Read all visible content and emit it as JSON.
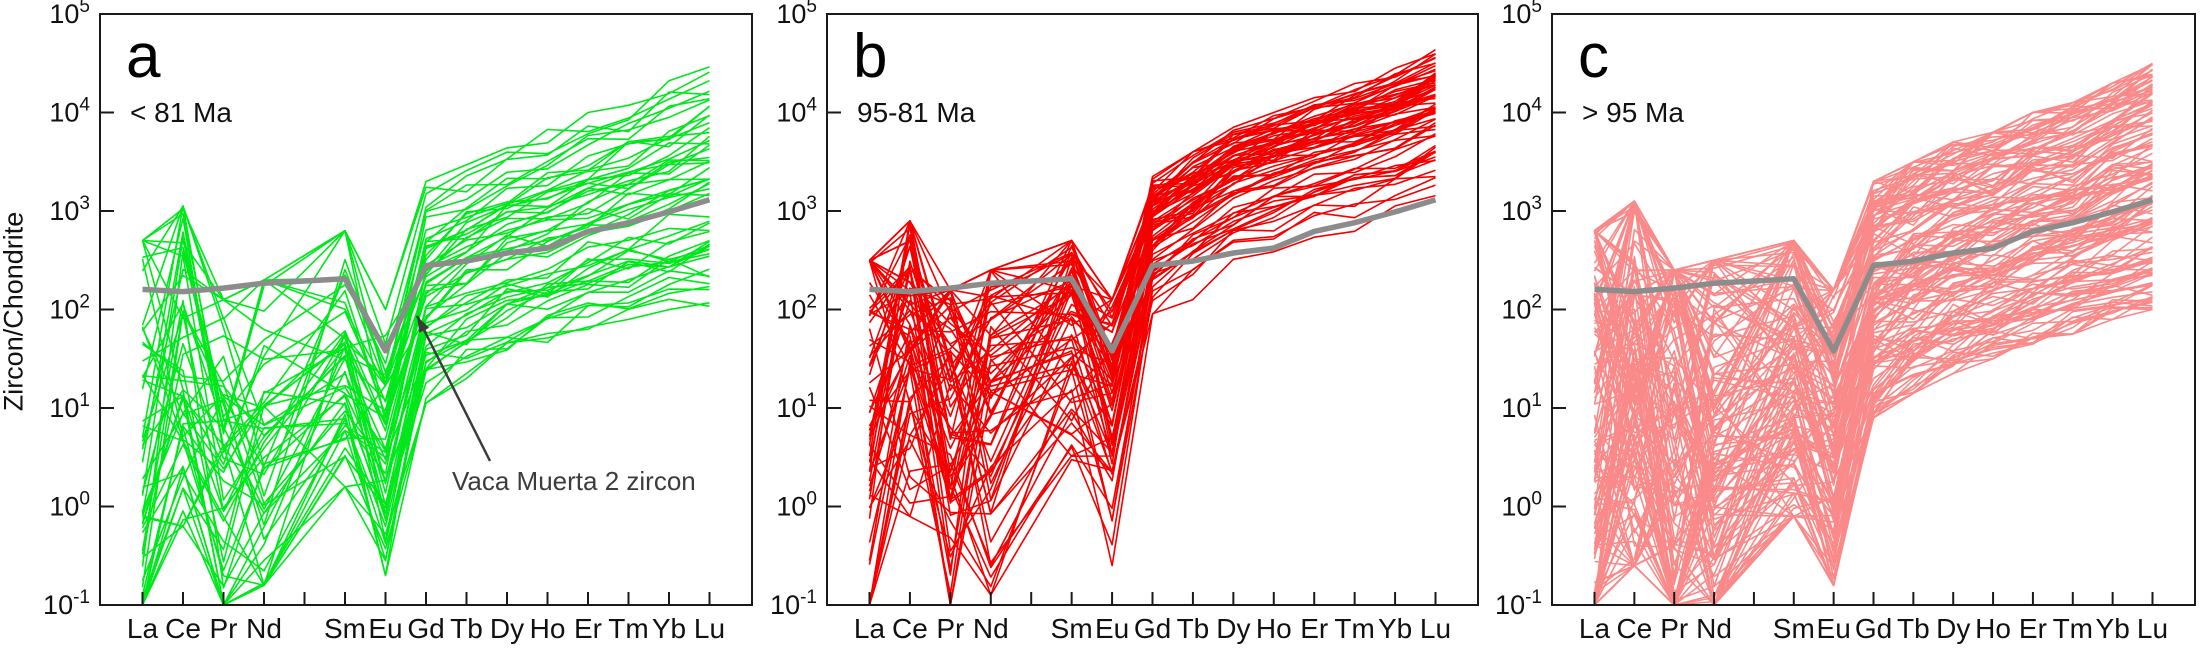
{
  "axis": {
    "ylabel": "Zircon/Chondrite",
    "y_tick_base": "10",
    "y_tick_exponents": [
      "5",
      "4",
      "3",
      "2",
      "1",
      "0",
      "-1"
    ],
    "yscale": "log",
    "ylim": [
      0.1,
      100000
    ],
    "grid": false
  },
  "categories": [
    "La",
    "Ce",
    "Pr",
    "Nd",
    "Sm",
    "Eu",
    "Gd",
    "Tb",
    "Dy",
    "Ho",
    "Er",
    "Tm",
    "Yb",
    "Lu"
  ],
  "colors": {
    "axis": "#1a1a1a",
    "reference_gray": "#8c8c8c",
    "annotation": "#3c3c3c",
    "panel_a_green": "#00e81c",
    "panel_b_red": "#f50000",
    "panel_c_salmon": "#fa8a8a"
  },
  "chart_data": [
    {
      "type": "line",
      "panel_label": "a",
      "age_label": "< 81 Ma",
      "line_color": "#00e81c",
      "n_lines": 55,
      "t_skew": 1.0,
      "yscale": "log",
      "ylim": [
        0.1,
        100000
      ],
      "log_band_min": [
        -1.3,
        -0.2,
        -1.2,
        -0.8,
        0.2,
        -0.7,
        1.05,
        1.3,
        1.5,
        1.65,
        1.8,
        1.9,
        1.95,
        2.0
      ],
      "log_band_max": [
        2.7,
        3.05,
        2.1,
        2.3,
        2.8,
        2.0,
        3.3,
        3.5,
        3.7,
        3.85,
        4.0,
        4.15,
        4.4,
        4.55
      ],
      "noise_amp": [
        0.45,
        0.38,
        0.42,
        0.38,
        0.33,
        0.28,
        0.1,
        0.08,
        0.07,
        0.06,
        0.06,
        0.06,
        0.06,
        0.06
      ],
      "reference": {
        "name": "Vaca Muerta 2 zircon",
        "values": [
          160,
          152,
          165,
          185,
          205,
          38,
          280,
          310,
          375,
          420,
          620,
          760,
          980,
          1300
        ]
      },
      "annotation": {
        "text": "Vaca Muerta 2 zircon"
      }
    },
    {
      "type": "line",
      "panel_label": "b",
      "age_label": "95-81 Ma",
      "line_color": "#f50000",
      "n_lines": 72,
      "t_skew": 0.5,
      "yscale": "log",
      "ylim": [
        0.1,
        100000
      ],
      "log_band_min": [
        -1.4,
        -0.1,
        -1.3,
        -0.9,
        0.3,
        -0.6,
        1.8,
        2.1,
        2.35,
        2.5,
        2.65,
        2.75,
        2.85,
        2.95
      ],
      "log_band_max": [
        2.5,
        2.9,
        2.2,
        2.4,
        2.7,
        2.1,
        3.35,
        3.6,
        3.85,
        4.0,
        4.15,
        4.3,
        4.45,
        4.65
      ],
      "noise_amp": [
        0.5,
        0.4,
        0.45,
        0.4,
        0.32,
        0.3,
        0.1,
        0.08,
        0.07,
        0.06,
        0.06,
        0.06,
        0.06,
        0.06
      ],
      "reference": {
        "name": "Vaca Muerta 2 zircon",
        "values": [
          160,
          152,
          165,
          185,
          205,
          38,
          280,
          310,
          375,
          420,
          620,
          760,
          980,
          1300
        ]
      }
    },
    {
      "type": "line",
      "panel_label": "c",
      "age_label": "> 95 Ma",
      "line_color": "#fa8a8a",
      "n_lines": 150,
      "t_skew": 0.95,
      "yscale": "log",
      "ylim": [
        0.1,
        100000
      ],
      "log_band_min": [
        -1.5,
        -0.6,
        -1.4,
        -1.0,
        -0.1,
        -0.8,
        0.9,
        1.15,
        1.35,
        1.5,
        1.65,
        1.75,
        1.9,
        2.0
      ],
      "log_band_max": [
        2.8,
        3.1,
        2.4,
        2.5,
        2.7,
        2.2,
        3.3,
        3.5,
        3.7,
        3.8,
        4.0,
        4.1,
        4.3,
        4.5
      ],
      "noise_amp": [
        0.5,
        0.42,
        0.48,
        0.42,
        0.35,
        0.3,
        0.12,
        0.09,
        0.08,
        0.07,
        0.06,
        0.06,
        0.06,
        0.06
      ],
      "reference": {
        "name": "Vaca Muerta 2 zircon",
        "values": [
          160,
          152,
          165,
          185,
          205,
          38,
          280,
          310,
          375,
          420,
          620,
          760,
          980,
          1300
        ]
      }
    }
  ]
}
